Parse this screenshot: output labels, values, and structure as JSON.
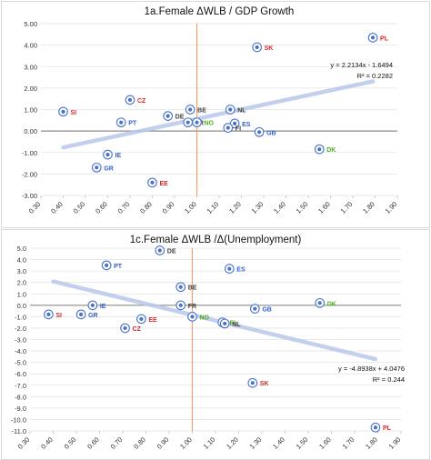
{
  "chart_data": [
    {
      "type": "scatter",
      "title": "1a.Female ΔWLB / GDP Growth",
      "xlabel": "",
      "ylabel": "",
      "xlim": [
        0.3,
        1.9
      ],
      "ylim": [
        -3.0,
        5.0
      ],
      "xticks": [
        "0.30",
        "0.40",
        "0.50",
        "0.60",
        "0.70",
        "0.80",
        "0.90",
        "1.00",
        "1.10",
        "1.20",
        "1.30",
        "1.40",
        "1.50",
        "1.60",
        "1.70",
        "1.80",
        "1.90"
      ],
      "yticks": [
        "5.00",
        "4.00",
        "3.00",
        "2.00",
        "1.00",
        "0.00",
        "-1.00",
        "-2.00",
        "-3.00"
      ],
      "grid": "horizontal",
      "vline_x": 1.0,
      "points": [
        {
          "label": "SI",
          "x": 0.4,
          "y": 0.9,
          "color": "#d62728"
        },
        {
          "label": "PT",
          "x": 0.66,
          "y": 0.4,
          "color": "#2f5fd0"
        },
        {
          "label": "CZ",
          "x": 0.7,
          "y": 1.45,
          "color": "#d62728"
        },
        {
          "label": "DE",
          "x": 0.87,
          "y": 0.7,
          "color": "#404040"
        },
        {
          "label": "BE",
          "x": 0.97,
          "y": 1.0,
          "color": "#404040"
        },
        {
          "label": "FR",
          "x": 0.96,
          "y": 0.4,
          "color": "#404040"
        },
        {
          "label": "NO",
          "x": 1.0,
          "y": 0.4,
          "color": "#4caf1a"
        },
        {
          "label": "NL",
          "x": 1.15,
          "y": 1.0,
          "color": "#404040"
        },
        {
          "label": "ES",
          "x": 1.17,
          "y": 0.35,
          "color": "#2f5fd0"
        },
        {
          "label": "FI",
          "x": 1.14,
          "y": 0.15,
          "color": "#404040"
        },
        {
          "label": "GB",
          "x": 1.28,
          "y": -0.05,
          "color": "#2f5fd0"
        },
        {
          "label": "IE",
          "x": 0.6,
          "y": -1.1,
          "color": "#2f5fd0"
        },
        {
          "label": "GR",
          "x": 0.55,
          "y": -1.7,
          "color": "#2f5fd0"
        },
        {
          "label": "EE",
          "x": 0.8,
          "y": -2.4,
          "color": "#d62728"
        },
        {
          "label": "SK",
          "x": 1.27,
          "y": 3.9,
          "color": "#d62728"
        },
        {
          "label": "PL",
          "x": 1.79,
          "y": 4.35,
          "color": "#d62728"
        },
        {
          "label": "DK",
          "x": 1.55,
          "y": -0.85,
          "color": "#4caf1a"
        }
      ],
      "trendline": {
        "slope": 2.2134,
        "intercept": -1.6494,
        "x_range": [
          0.4,
          1.79
        ]
      },
      "equation": "y = 2.2134x - 1.6494",
      "r_squared": "R² = 0.2282"
    },
    {
      "type": "scatter",
      "title": "1c.Female ΔWLB /Δ(Unemployment)",
      "xlabel": "",
      "ylabel": "",
      "xlim": [
        0.3,
        1.9
      ],
      "ylim": [
        -11.0,
        5.0
      ],
      "xticks": [
        "0.30",
        "0.40",
        "0.50",
        "0.60",
        "0.70",
        "0.80",
        "0.90",
        "1.00",
        "1.10",
        "1.20",
        "1.30",
        "1.40",
        "1.50",
        "1.60",
        "1.70",
        "1.80",
        "1.90"
      ],
      "yticks": [
        "5.0",
        "4.0",
        "3.0",
        "2.0",
        "1.0",
        "0.0",
        "-1.0",
        "-2.0",
        "-3.0",
        "-4.0",
        "-5.0",
        "-6.0",
        "-7.0",
        "-8.0",
        "-9.0",
        "-10.0",
        "-11.0"
      ],
      "grid": "horizontal",
      "vline_x": 1.0,
      "points": [
        {
          "label": "DE",
          "x": 0.86,
          "y": 4.8,
          "color": "#404040"
        },
        {
          "label": "PT",
          "x": 0.63,
          "y": 3.5,
          "color": "#2f5fd0"
        },
        {
          "label": "ES",
          "x": 1.16,
          "y": 3.2,
          "color": "#2f5fd0"
        },
        {
          "label": "BE",
          "x": 0.95,
          "y": 1.6,
          "color": "#404040"
        },
        {
          "label": "IE",
          "x": 0.57,
          "y": 0.0,
          "color": "#2f5fd0"
        },
        {
          "label": "FR",
          "x": 0.95,
          "y": 0.0,
          "color": "#404040"
        },
        {
          "label": "DK",
          "x": 1.55,
          "y": 0.2,
          "color": "#4caf1a"
        },
        {
          "label": "GB",
          "x": 1.27,
          "y": -0.3,
          "color": "#2f5fd0"
        },
        {
          "label": "SI",
          "x": 0.38,
          "y": -0.8,
          "color": "#d62728"
        },
        {
          "label": "GR",
          "x": 0.52,
          "y": -0.8,
          "color": "#2f5fd0"
        },
        {
          "label": "NO",
          "x": 1.0,
          "y": -1.0,
          "color": "#4caf1a"
        },
        {
          "label": "EE",
          "x": 0.78,
          "y": -1.2,
          "color": "#d62728"
        },
        {
          "label": "FI",
          "x": 1.13,
          "y": -1.5,
          "color": "#4caf1a"
        },
        {
          "label": "NL",
          "x": 1.14,
          "y": -1.6,
          "color": "#404040"
        },
        {
          "label": "CZ",
          "x": 0.71,
          "y": -2.0,
          "color": "#d62728"
        },
        {
          "label": "SK",
          "x": 1.26,
          "y": -6.8,
          "color": "#d62728"
        },
        {
          "label": "PL",
          "x": 1.79,
          "y": -10.7,
          "color": "#d62728"
        }
      ],
      "trendline": {
        "slope": -4.8938,
        "intercept": 4.0476,
        "x_range": [
          0.4,
          1.79
        ]
      },
      "equation": "y = -4.8938x + 4.0476",
      "r_squared": "R² = 0.244"
    }
  ]
}
